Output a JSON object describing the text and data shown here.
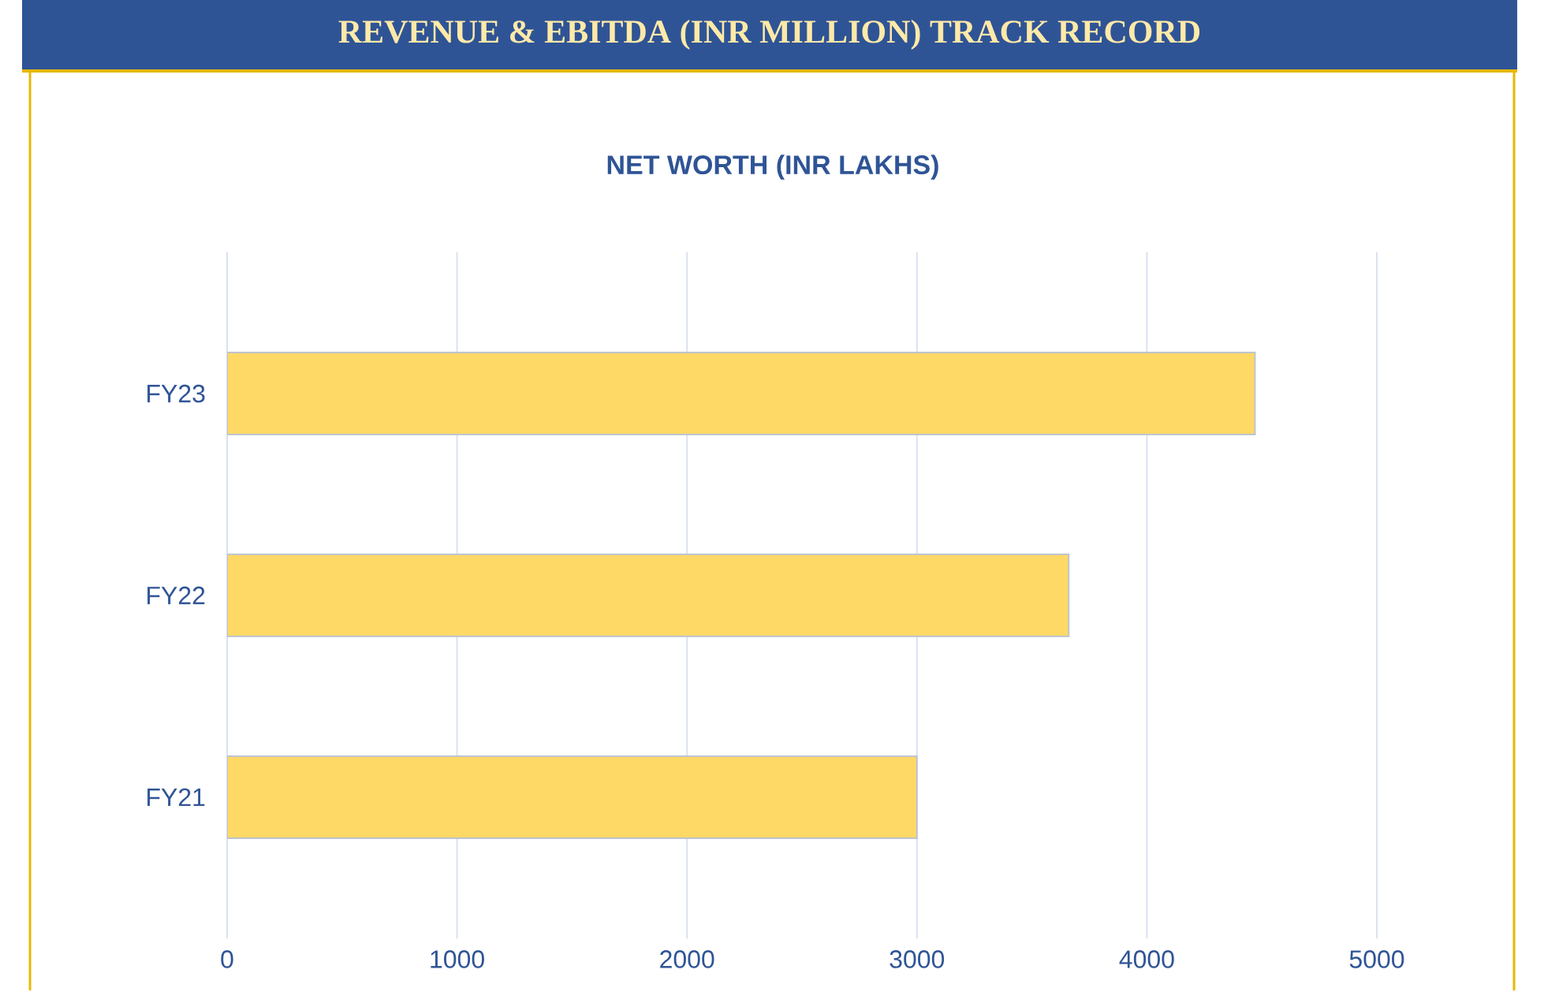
{
  "chart_data": {
    "type": "bar",
    "orientation": "horizontal",
    "title": "REVENUE & EBITDA (INR MILLION) TRACK RECORD",
    "subtitle": "NET WORTH (INR LAKHS)",
    "categories": [
      "FY23",
      "FY22",
      "FY21"
    ],
    "values": [
      4470,
      3660,
      3000
    ],
    "color": "#ffd966",
    "xlim": [
      0,
      5000
    ],
    "xticks": [
      0,
      1000,
      2000,
      3000,
      4000,
      5000
    ],
    "grid": "x"
  }
}
